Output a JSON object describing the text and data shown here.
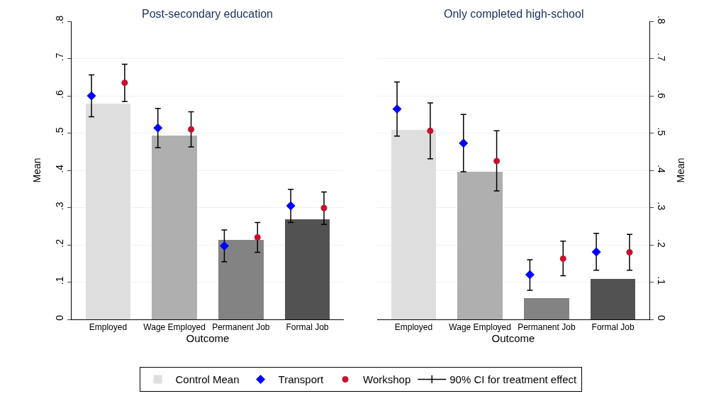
{
  "chart_data": [
    {
      "type": "bar",
      "title": "Post-secondary education",
      "xlabel": "Outcome",
      "ylabel": "Mean",
      "categories": [
        "Employed",
        "Wage Employed",
        "Permanent Job",
        "Formal Job"
      ],
      "series": [
        {
          "name": "Control Mean",
          "colors": [
            "#dedede",
            "#afafaf",
            "#838383",
            "#525252"
          ],
          "values": [
            0.58,
            0.494,
            0.213,
            0.268
          ]
        },
        {
          "name": "Transport",
          "type": "scatter",
          "marker": "diamond",
          "color": "#0000ff",
          "values": [
            0.6,
            0.514,
            0.197,
            0.305
          ],
          "errors": [
            [
              0.544,
              0.656
            ],
            [
              0.461,
              0.566
            ],
            [
              0.155,
              0.24
            ],
            [
              0.26,
              0.349
            ]
          ]
        },
        {
          "name": "Workshop",
          "type": "scatter",
          "marker": "circle",
          "color": "#c8102e",
          "values": [
            0.635,
            0.51,
            0.22,
            0.299
          ],
          "errors": [
            [
              0.585,
              0.685
            ],
            [
              0.463,
              0.557
            ],
            [
              0.18,
              0.26
            ],
            [
              0.255,
              0.342
            ]
          ]
        }
      ],
      "ylim": [
        0,
        0.8
      ],
      "yticks": [
        0,
        {
          "value": 0.1,
          "label": ".1"
        },
        {
          "value": 0.2,
          "label": ".2"
        },
        {
          "value": 0.3,
          "label": ".3"
        },
        {
          "value": 0.4,
          "label": ".4"
        },
        {
          "value": 0.5,
          "label": ".5"
        },
        {
          "value": 0.6,
          "label": ".6"
        },
        {
          "value": 0.7,
          "label": ".7"
        },
        {
          "value": 0.8,
          "label": ".8"
        }
      ],
      "grid": "y",
      "legend": "bottom",
      "annotations": [
        "90% CI for treatment effect"
      ]
    },
    {
      "type": "bar",
      "title": "Only completed high-school",
      "xlabel": "Outcome",
      "ylabel": "Mean",
      "categories": [
        "Employed",
        "Wage Employed",
        "Permanent Job",
        "Formal Job"
      ],
      "series": [
        {
          "colors": [
            "#dedede",
            "#afafaf",
            "#838383",
            "#525252"
          ],
          "values": [
            0.509,
            0.396,
            0.058,
            0.109
          ]
        },
        {
          "type": "scatter",
          "marker": "diamond",
          "color": "#0000ff",
          "values": [
            0.565,
            0.473,
            0.12,
            0.181
          ],
          "errors": [
            [
              0.492,
              0.637
            ],
            [
              0.396,
              0.55
            ],
            [
              0.078,
              0.16
            ],
            [
              0.132,
              0.231
            ]
          ]
        },
        {
          "type": "scatter",
          "marker": "circle",
          "color": "#c8102e",
          "values": [
            0.506,
            0.425,
            0.163,
            0.18
          ],
          "errors": [
            [
              0.431,
              0.581
            ],
            [
              0.345,
              0.506
            ],
            [
              0.117,
              0.21
            ],
            [
              0.132,
              0.228
            ]
          ]
        }
      ],
      "ylim": [
        0,
        0.8
      ],
      "yticks": [
        0,
        {
          "value": 0.1,
          "label": ".1"
        },
        {
          "value": 0.2,
          "label": ".2"
        },
        {
          "value": 0.3,
          "label": ".3"
        },
        {
          "value": 0.4,
          "label": ".4"
        },
        {
          "value": 0.5,
          "label": ".5"
        },
        {
          "value": 0.6,
          "label": ".6"
        },
        {
          "value": 0.7,
          "label": ".7"
        },
        {
          "value": 0.8,
          "label": ".8"
        }
      ],
      "grid": "y"
    }
  ]
}
